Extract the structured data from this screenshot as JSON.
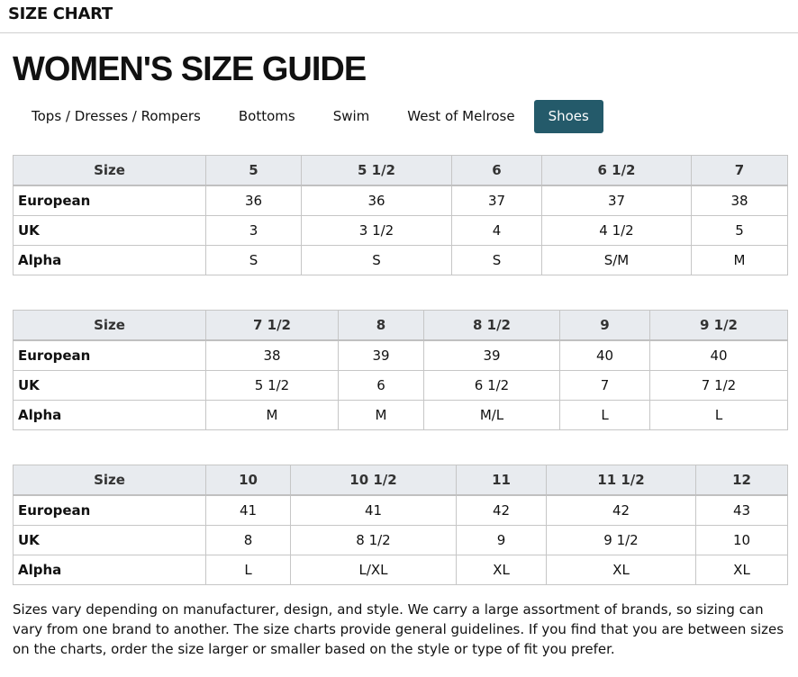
{
  "header": {
    "title": "SIZE CHART"
  },
  "page_title": "WOMEN'S SIZE GUIDE",
  "accent_color": "#245a6a",
  "tabs": [
    {
      "label": "Tops / Dresses / Rompers",
      "active": false
    },
    {
      "label": "Bottoms",
      "active": false
    },
    {
      "label": "Swim",
      "active": false
    },
    {
      "label": "West of Melrose",
      "active": false
    },
    {
      "label": "Shoes",
      "active": true
    }
  ],
  "tables": [
    {
      "headers": [
        "Size",
        "5",
        "5 1/2",
        "6",
        "6 1/2",
        "7"
      ],
      "rows": [
        [
          "European",
          "36",
          "36",
          "37",
          "37",
          "38"
        ],
        [
          "UK",
          "3",
          "3 1/2",
          "4",
          "4 1/2",
          "5"
        ],
        [
          "Alpha",
          "S",
          "S",
          "S",
          "S/M",
          "M"
        ]
      ]
    },
    {
      "headers": [
        "Size",
        "7 1/2",
        "8",
        "8 1/2",
        "9",
        "9 1/2"
      ],
      "rows": [
        [
          "European",
          "38",
          "39",
          "39",
          "40",
          "40"
        ],
        [
          "UK",
          "5 1/2",
          "6",
          "6 1/2",
          "7",
          "7 1/2"
        ],
        [
          "Alpha",
          "M",
          "M",
          "M/L",
          "L",
          "L"
        ]
      ]
    },
    {
      "headers": [
        "Size",
        "10",
        "10 1/2",
        "11",
        "11 1/2",
        "12"
      ],
      "rows": [
        [
          "European",
          "41",
          "41",
          "42",
          "42",
          "43"
        ],
        [
          "UK",
          "8",
          "8 1/2",
          "9",
          "9 1/2",
          "10"
        ],
        [
          "Alpha",
          "L",
          "L/XL",
          "XL",
          "XL",
          "XL"
        ]
      ]
    }
  ],
  "note": "Sizes vary depending on manufacturer, design, and style. We carry a large assortment of brands, so sizing can vary from one brand to another. The size charts provide general guidelines. If you find that you are between sizes on the charts, order the size larger or smaller based on the style or type of fit you prefer."
}
